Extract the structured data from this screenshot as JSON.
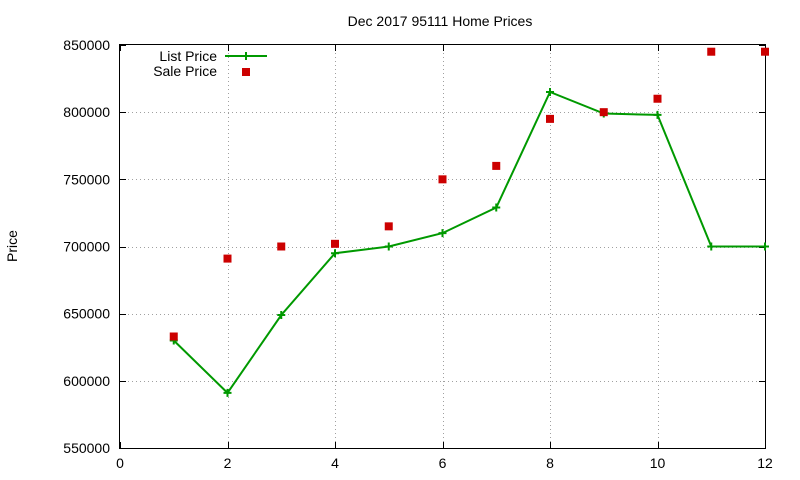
{
  "chart_data": {
    "type": "line",
    "title": "Dec 2017 95111 Home Prices",
    "xlabel": "",
    "ylabel": "Price",
    "xlim": [
      0,
      12
    ],
    "ylim": [
      550000,
      850000
    ],
    "xticks": [
      0,
      2,
      4,
      6,
      8,
      10,
      12
    ],
    "yticks": [
      550000,
      600000,
      650000,
      700000,
      750000,
      800000,
      850000
    ],
    "grid": true,
    "legend_position": "top-left",
    "series": [
      {
        "name": "List Price",
        "style": "line-with-plus-markers",
        "color": "#009900",
        "x": [
          1,
          2,
          3,
          4,
          5,
          6,
          7,
          8,
          9,
          10,
          11,
          12
        ],
        "y": [
          630000,
          591000,
          649000,
          695000,
          700000,
          710000,
          729000,
          815000,
          799000,
          798000,
          700000,
          700000
        ]
      },
      {
        "name": "Sale Price",
        "style": "square-markers",
        "color": "#cc0000",
        "x": [
          1,
          2,
          3,
          4,
          5,
          6,
          7,
          8,
          9,
          10,
          11,
          12
        ],
        "y": [
          633000,
          691000,
          700000,
          702000,
          715000,
          750000,
          760000,
          795000,
          800000,
          810000,
          845000,
          845000
        ]
      }
    ]
  }
}
